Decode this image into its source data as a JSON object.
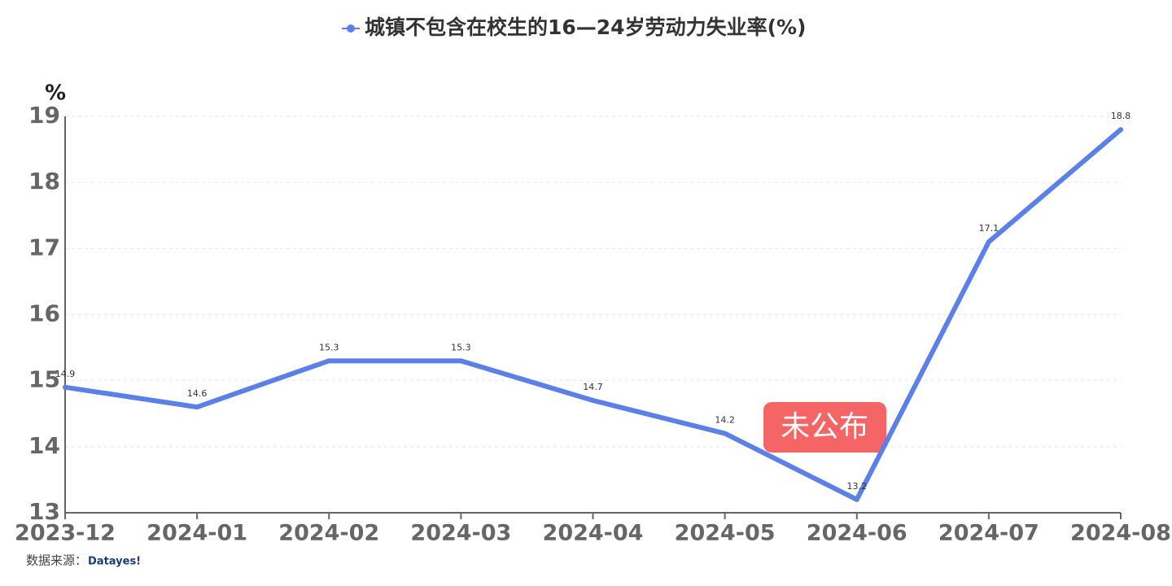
{
  "chart_data": {
    "type": "line",
    "y_axis_label": "%",
    "categories": [
      "2023-12",
      "2024-01",
      "2024-02",
      "2024-03",
      "2024-04",
      "2024-05",
      "2024-06",
      "2024-07",
      "2024-08"
    ],
    "series": [
      {
        "name": "城镇不包含在校生的16—24岁劳动力失业率(%)",
        "color": "#5b80e8",
        "values": [
          14.9,
          14.6,
          15.3,
          15.3,
          14.7,
          14.2,
          13.2,
          17.1,
          18.8
        ]
      }
    ],
    "ylim": [
      13,
      19
    ],
    "yticks": [
      13,
      14,
      15,
      16,
      17,
      18,
      19
    ],
    "grid": true,
    "annotation": "未公布",
    "source": "数据来源：",
    "logo": "Datayes!"
  }
}
